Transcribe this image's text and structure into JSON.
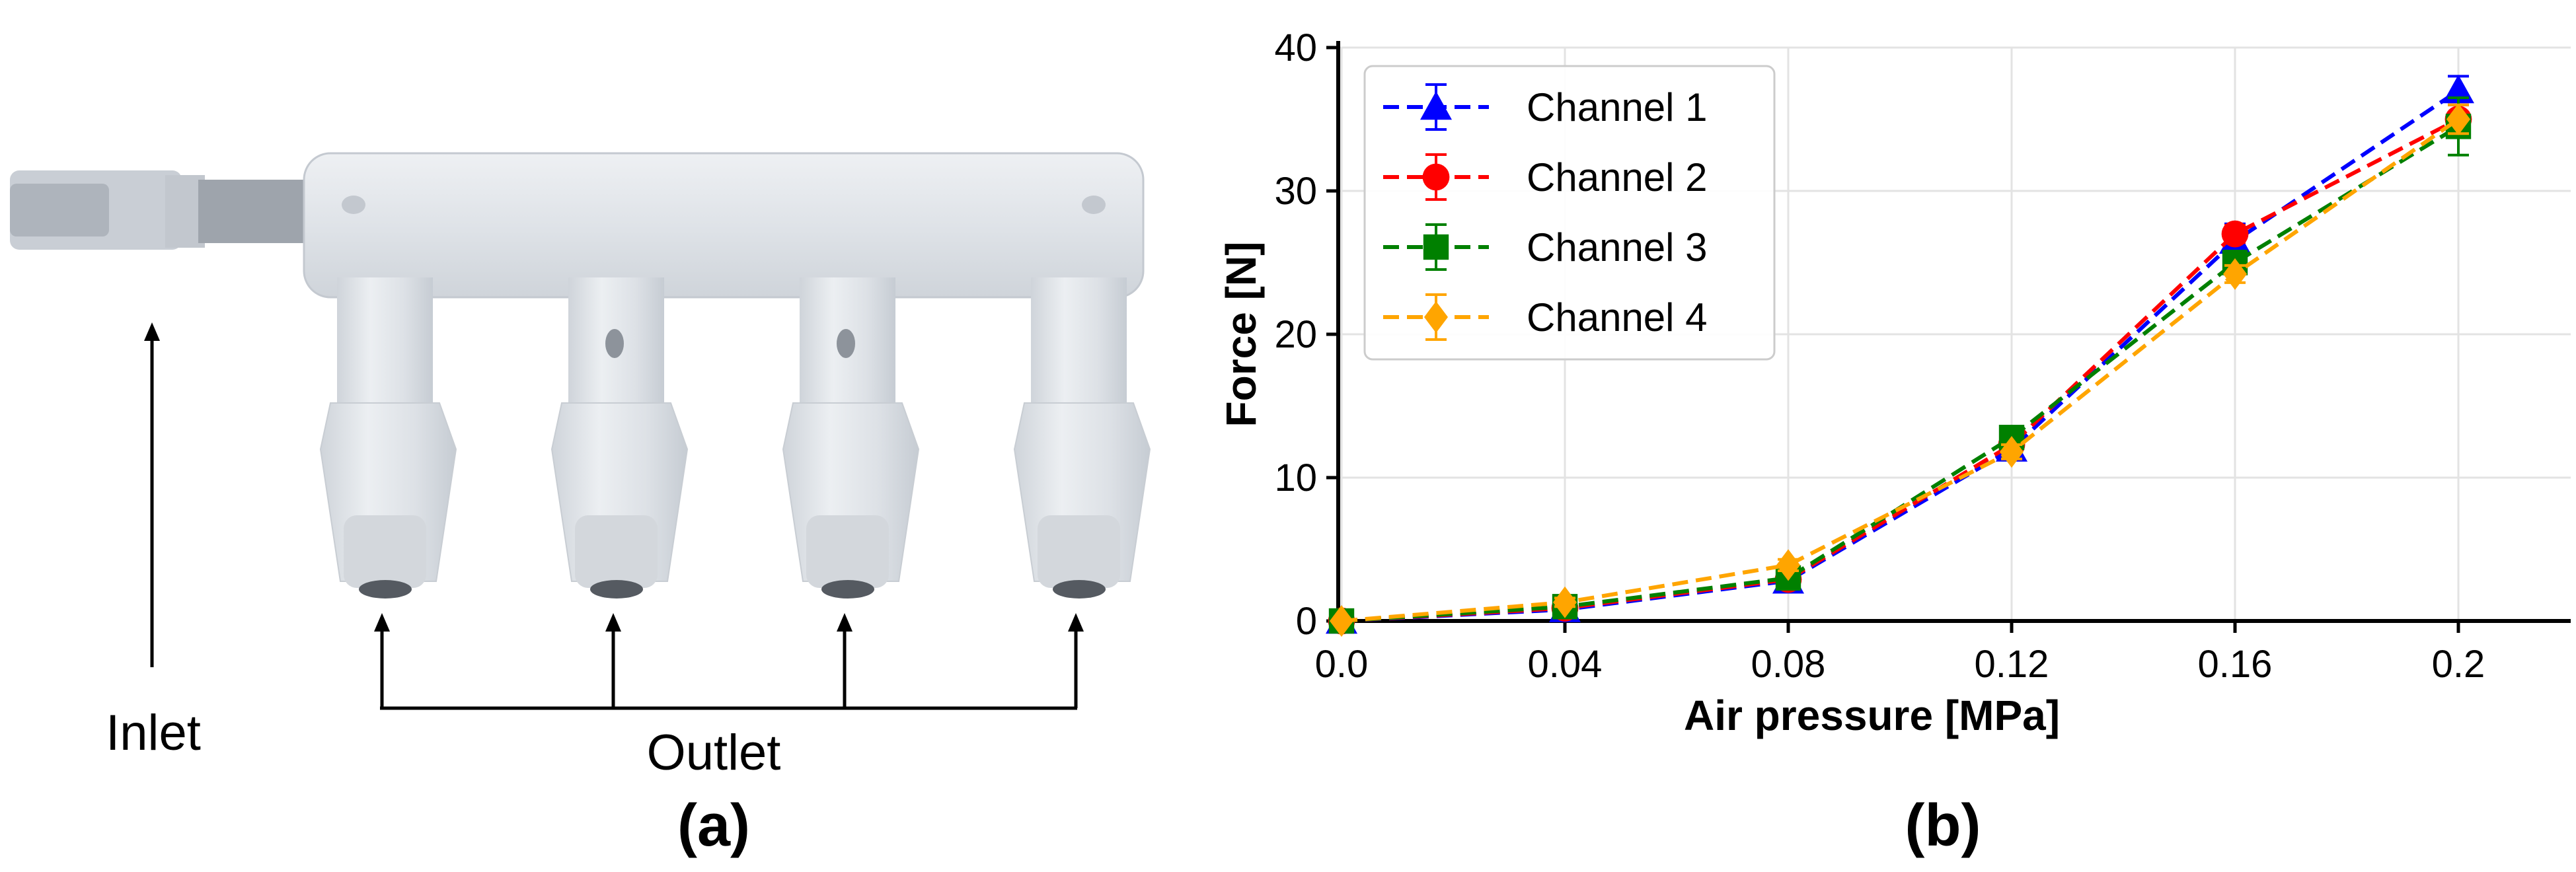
{
  "panel_a": {
    "inlet_label": "Inlet",
    "outlet_label": "Outlet",
    "caption": "(a)"
  },
  "panel_b": {
    "caption": "(b)"
  },
  "chart_data": {
    "type": "line",
    "xlabel": "Air pressure [MPa]",
    "ylabel": "Force [N]",
    "xlim": [
      0,
      0.2
    ],
    "ylim": [
      0,
      40
    ],
    "x": [
      0.0,
      0.04,
      0.08,
      0.12,
      0.16,
      0.2
    ],
    "xtick_labels": [
      "0.0",
      "0.04",
      "0.08",
      "0.12",
      "0.16",
      "0.2"
    ],
    "yticks": [
      0,
      10,
      20,
      30,
      40
    ],
    "ytick_labels": [
      "0",
      "10",
      "20",
      "30",
      "40"
    ],
    "grid": true,
    "legend_position": "top-left",
    "series": [
      {
        "name": "Channel 1",
        "color": "#0000ff",
        "marker": "triangle",
        "values": [
          0,
          0.8,
          2.8,
          12.0,
          26.5,
          37.0
        ],
        "errors": [
          0,
          0.2,
          0.3,
          0.5,
          1.2,
          1.0
        ]
      },
      {
        "name": "Channel 2",
        "color": "#ff0000",
        "marker": "circle",
        "values": [
          0,
          0.9,
          2.9,
          12.3,
          27.0,
          35.0
        ],
        "errors": [
          0,
          0.2,
          0.3,
          0.5,
          0.6,
          1.0
        ]
      },
      {
        "name": "Channel 3",
        "color": "#008000",
        "marker": "square",
        "values": [
          0,
          1.0,
          3.0,
          12.8,
          25.0,
          34.5
        ],
        "errors": [
          0,
          0.2,
          0.4,
          0.6,
          0.8,
          2.0
        ]
      },
      {
        "name": "Channel 4",
        "color": "#ffa500",
        "marker": "diamond",
        "values": [
          0,
          1.3,
          3.9,
          11.8,
          24.2,
          35.0
        ],
        "errors": [
          0,
          0.3,
          0.4,
          0.5,
          0.6,
          1.0
        ]
      }
    ]
  }
}
